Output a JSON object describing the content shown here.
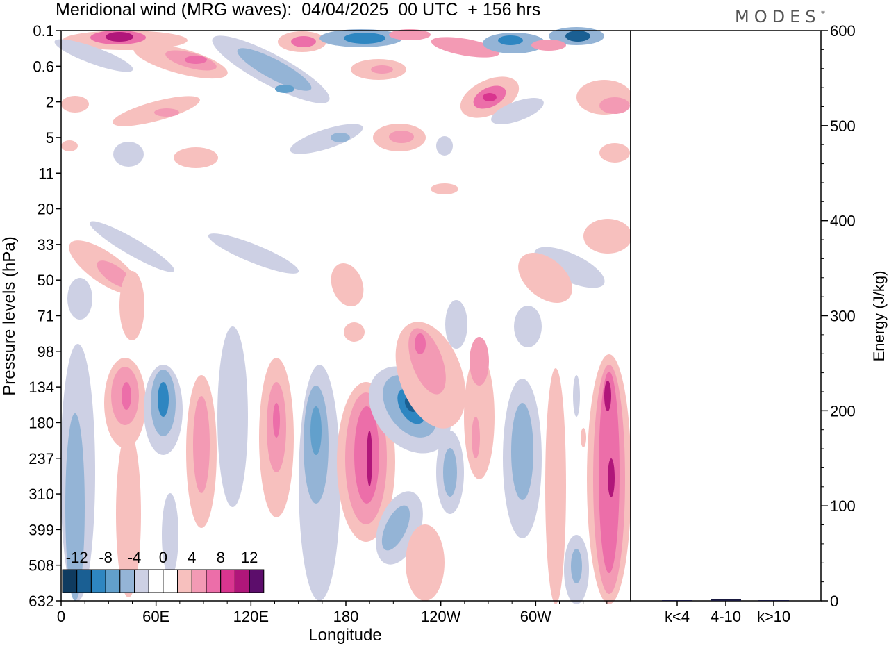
{
  "title": "Meridional wind (MRG waves):  04/04/2025  00 UTC  + 156 hrs",
  "logo": "MODES",
  "chart_data": [
    {
      "type": "heatmap",
      "title": "Meridional wind (MRG waves):  04/04/2025  00 UTC  + 156 hrs",
      "xlabel": "Longitude",
      "ylabel": "Pressure levels (hPa)",
      "x_ticks": [
        "0",
        "60E",
        "120E",
        "180",
        "120W",
        "60W"
      ],
      "y_ticks": [
        "0.1",
        "0.6",
        "2",
        "5",
        "11",
        "20",
        "33",
        "50",
        "71",
        "98",
        "134",
        "180",
        "237",
        "310",
        "399",
        "508",
        "632"
      ],
      "colorbar_ticks": [
        "-12",
        "-8",
        "-4",
        "0",
        "4",
        "8",
        "12"
      ],
      "colorbar_colors": [
        "#0f3b60",
        "#1a5f93",
        "#2e86c1",
        "#62a0cc",
        "#94b4d6",
        "#cdd0e4",
        "#ffffff",
        "#ffffff",
        "#f7c0be",
        "#f39ab4",
        "#ec6ea9",
        "#d9358f",
        "#b0167a",
        "#5c0d6b"
      ],
      "grid": false
    },
    {
      "type": "bar",
      "ylabel": "Energy (J/kg)",
      "categories": [
        "k<4",
        "4-10",
        "k>10"
      ],
      "values": [
        0.5,
        2,
        0.5
      ],
      "ylim": [
        0,
        600
      ],
      "y_ticks": [
        "0",
        "100",
        "200",
        "300",
        "400",
        "500",
        "600"
      ],
      "bar_color": "#1a1a40"
    }
  ]
}
